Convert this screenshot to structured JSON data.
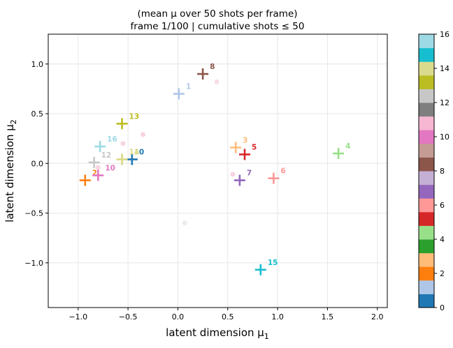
{
  "chart_data": {
    "type": "scatter",
    "title_line1": "(mean μ over 50 shots per frame)",
    "title_line2": "frame 1/100  |  cumulative shots ≤ 50",
    "xlabel": "latent dimension μ",
    "xlabel_sub": "1",
    "ylabel": "latent dimension μ",
    "ylabel_sub": "2",
    "xlim": [
      -1.3,
      2.1
    ],
    "ylim": [
      -1.45,
      1.3
    ],
    "xticks": [
      "−1.0",
      "−0.5",
      "0.0",
      "0.5",
      "1.0",
      "1.5",
      "2.0"
    ],
    "xtick_values": [
      -1.0,
      -0.5,
      0.0,
      0.5,
      1.0,
      1.5,
      2.0
    ],
    "yticks": [
      "−1.0",
      "−0.5",
      "0.0",
      "0.5",
      "1.0"
    ],
    "ytick_values": [
      -1.0,
      -0.5,
      0.0,
      0.5,
      1.0
    ],
    "grid": true,
    "points": [
      {
        "label": "0",
        "x": -0.46,
        "y": 0.04,
        "color": "#1f77b4"
      },
      {
        "label": "1",
        "x": 0.01,
        "y": 0.7,
        "color": "#aec7e8"
      },
      {
        "label": "2",
        "x": -0.93,
        "y": -0.17,
        "color": "#ff7f0e"
      },
      {
        "label": "3",
        "x": 0.58,
        "y": 0.16,
        "color": "#ffbb78"
      },
      {
        "label": "4",
        "x": 1.61,
        "y": 0.1,
        "color": "#98df8a"
      },
      {
        "label": "5",
        "x": 0.67,
        "y": 0.09,
        "color": "#d62728"
      },
      {
        "label": "6",
        "x": 0.96,
        "y": -0.15,
        "color": "#ff9896"
      },
      {
        "label": "7",
        "x": 0.62,
        "y": -0.17,
        "color": "#9467bd"
      },
      {
        "label": "8",
        "x": 0.25,
        "y": 0.9,
        "color": "#8c564b"
      },
      {
        "label": "10",
        "x": -0.8,
        "y": -0.12,
        "color": "#e377c2"
      },
      {
        "label": "11",
        "x": -0.56,
        "y": 0.04,
        "color": "#dbdb8d"
      },
      {
        "label": "12",
        "x": -0.84,
        "y": 0.01,
        "color": "#c7c7c7"
      },
      {
        "label": "13",
        "x": -0.56,
        "y": 0.4,
        "color": "#bcbd22"
      },
      {
        "label": "14",
        "x": -0.56,
        "y": 0.04,
        "color": "#dbdb8d"
      },
      {
        "label": "15",
        "x": 0.83,
        "y": -1.07,
        "color": "#17becf"
      },
      {
        "label": "16",
        "x": -0.78,
        "y": 0.17,
        "color": "#9edae5"
      }
    ],
    "faint_points": [
      {
        "x": 0.39,
        "y": 0.82,
        "color": "#f0c8d8"
      },
      {
        "x": 0.55,
        "y": -0.11,
        "color": "#f7b6d2"
      },
      {
        "x": -0.55,
        "y": 0.2,
        "color": "#f7b6d2"
      },
      {
        "x": -0.35,
        "y": 0.29,
        "color": "#f7b6d2"
      },
      {
        "x": -0.8,
        "y": -0.04,
        "color": "#f7b6d2"
      },
      {
        "x": 0.07,
        "y": -0.6,
        "color": "#dddddd"
      }
    ],
    "colorbar": {
      "ticks": [
        "0",
        "2",
        "4",
        "6",
        "8",
        "10",
        "12",
        "14",
        "16"
      ],
      "tick_values": [
        0,
        2,
        4,
        6,
        8,
        10,
        12,
        14,
        16
      ],
      "min": 0,
      "max": 16,
      "colors": [
        "#1f77b4",
        "#aec7e8",
        "#ff7f0e",
        "#ffbb78",
        "#2ca02c",
        "#98df8a",
        "#d62728",
        "#ff9896",
        "#9467bd",
        "#c5b0d5",
        "#8c564b",
        "#c49c94",
        "#e377c2",
        "#f7b6d2",
        "#7f7f7f",
        "#c7c7c7",
        "#bcbd22",
        "#dbdb8d",
        "#17becf",
        "#9edae5"
      ]
    }
  }
}
